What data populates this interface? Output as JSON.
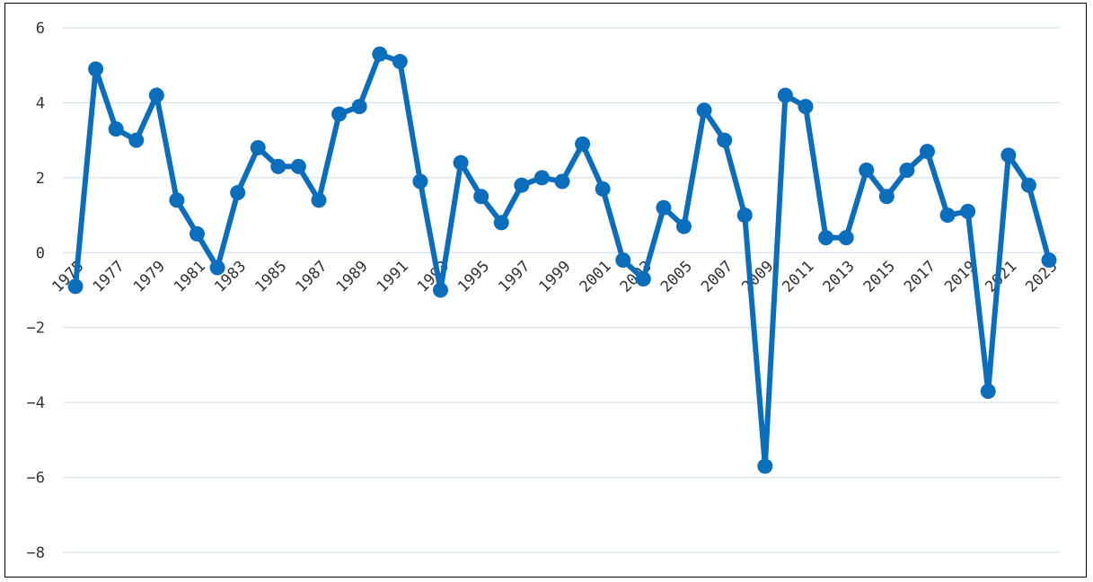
{
  "chart_data": {
    "type": "line",
    "title": "",
    "xlabel": "",
    "ylabel": "",
    "x": [
      1975,
      1976,
      1977,
      1978,
      1979,
      1980,
      1981,
      1982,
      1983,
      1984,
      1985,
      1986,
      1987,
      1988,
      1989,
      1990,
      1991,
      1992,
      1993,
      1994,
      1995,
      1996,
      1997,
      1998,
      1999,
      2000,
      2001,
      2002,
      2003,
      2004,
      2005,
      2006,
      2007,
      2008,
      2009,
      2010,
      2011,
      2012,
      2013,
      2014,
      2015,
      2016,
      2017,
      2018,
      2019,
      2020,
      2021,
      2022,
      2023
    ],
    "x_tick_labels": [
      "1975",
      "1977",
      "1979",
      "1981",
      "1983",
      "1985",
      "1987",
      "1989",
      "1991",
      "1993",
      "1995",
      "1997",
      "1999",
      "2001",
      "2003",
      "2005",
      "2007",
      "2009",
      "2011",
      "2013",
      "2015",
      "2017",
      "2019",
      "2021",
      "2023"
    ],
    "y_tick_labels": [
      "6",
      "4",
      "2",
      "0",
      "−2",
      "−4",
      "−6",
      "−8"
    ],
    "y_ticks": [
      6,
      4,
      2,
      0,
      -2,
      -4,
      -6,
      -8
    ],
    "ylim": [
      -8,
      6
    ],
    "grid": true,
    "legend": "none",
    "color": "#0a6ebd",
    "series": [
      {
        "values": [
          -0.9,
          4.9,
          3.3,
          3.0,
          4.2,
          1.4,
          0.5,
          -0.4,
          1.6,
          2.8,
          2.3,
          2.3,
          1.4,
          3.7,
          3.9,
          5.3,
          5.1,
          1.9,
          -1.0,
          2.4,
          1.5,
          0.8,
          1.8,
          2.0,
          1.9,
          2.9,
          1.7,
          -0.2,
          -0.7,
          1.2,
          0.7,
          3.8,
          3.0,
          1.0,
          -5.7,
          4.2,
          3.9,
          0.4,
          0.4,
          2.2,
          1.5,
          2.2,
          2.7,
          1.0,
          1.1,
          -3.7,
          2.6,
          1.8,
          -0.2
        ]
      }
    ]
  }
}
